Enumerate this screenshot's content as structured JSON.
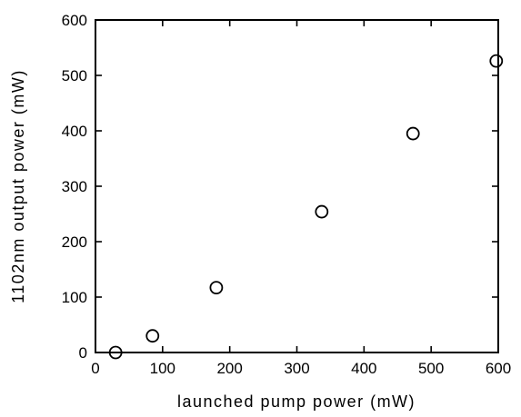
{
  "chart_data": {
    "type": "scatter",
    "xlabel": "launched pump power (mW)",
    "ylabel": "1102nm output power (mW)",
    "xlim": [
      0,
      600
    ],
    "ylim": [
      0,
      600
    ],
    "xticks": [
      0,
      100,
      200,
      300,
      400,
      500,
      600
    ],
    "yticks": [
      0,
      100,
      200,
      300,
      400,
      500,
      600
    ],
    "xtick_labels": [
      "0",
      "100",
      "200",
      "300",
      "400",
      "500",
      "600"
    ],
    "ytick_labels": [
      "0",
      "100",
      "200",
      "300",
      "400",
      "500",
      "600"
    ],
    "grid": false,
    "marker": "open-circle",
    "points": [
      {
        "x": 30,
        "y": 0
      },
      {
        "x": 85,
        "y": 30
      },
      {
        "x": 180,
        "y": 117
      },
      {
        "x": 337,
        "y": 254
      },
      {
        "x": 473,
        "y": 395
      },
      {
        "x": 597,
        "y": 526
      }
    ]
  }
}
